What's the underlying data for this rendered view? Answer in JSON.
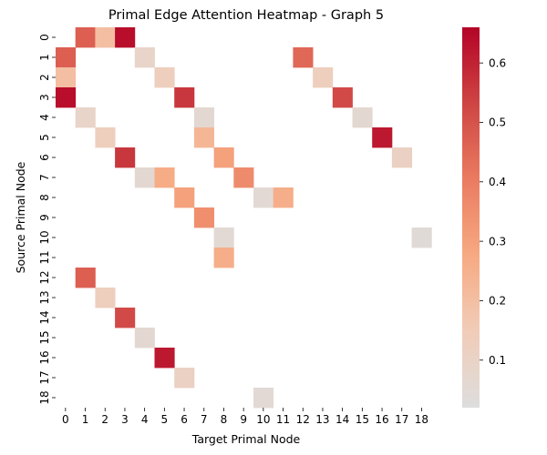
{
  "chart_data": {
    "type": "heatmap",
    "title": "Primal Edge Attention Heatmap - Graph 5",
    "xlabel": "Target Primal Node",
    "ylabel": "Source Primal Node",
    "x_categories": [
      "0",
      "1",
      "2",
      "3",
      "4",
      "5",
      "6",
      "7",
      "8",
      "9",
      "10",
      "11",
      "12",
      "13",
      "14",
      "15",
      "16",
      "17",
      "18"
    ],
    "y_categories": [
      "0",
      "1",
      "2",
      "3",
      "4",
      "5",
      "6",
      "7",
      "8",
      "9",
      "10",
      "11",
      "12",
      "13",
      "14",
      "15",
      "16",
      "17",
      "18"
    ],
    "cells": [
      {
        "row": 0,
        "col": 1,
        "value": 0.47
      },
      {
        "row": 0,
        "col": 2,
        "value": 0.2
      },
      {
        "row": 0,
        "col": 3,
        "value": 0.64
      },
      {
        "row": 1,
        "col": 0,
        "value": 0.47
      },
      {
        "row": 1,
        "col": 4,
        "value": 0.09
      },
      {
        "row": 1,
        "col": 12,
        "value": 0.45
      },
      {
        "row": 2,
        "col": 0,
        "value": 0.2
      },
      {
        "row": 2,
        "col": 5,
        "value": 0.13
      },
      {
        "row": 2,
        "col": 13,
        "value": 0.13
      },
      {
        "row": 3,
        "col": 0,
        "value": 0.64
      },
      {
        "row": 3,
        "col": 6,
        "value": 0.56
      },
      {
        "row": 3,
        "col": 14,
        "value": 0.52
      },
      {
        "row": 4,
        "col": 1,
        "value": 0.09
      },
      {
        "row": 4,
        "col": 7,
        "value": 0.06
      },
      {
        "row": 4,
        "col": 15,
        "value": 0.06
      },
      {
        "row": 5,
        "col": 2,
        "value": 0.13
      },
      {
        "row": 5,
        "col": 7,
        "value": 0.23
      },
      {
        "row": 5,
        "col": 16,
        "value": 0.62
      },
      {
        "row": 6,
        "col": 3,
        "value": 0.56
      },
      {
        "row": 6,
        "col": 8,
        "value": 0.3
      },
      {
        "row": 6,
        "col": 17,
        "value": 0.11
      },
      {
        "row": 7,
        "col": 4,
        "value": 0.06
      },
      {
        "row": 7,
        "col": 5,
        "value": 0.27
      },
      {
        "row": 7,
        "col": 9,
        "value": 0.36
      },
      {
        "row": 8,
        "col": 6,
        "value": 0.3
      },
      {
        "row": 8,
        "col": 10,
        "value": 0.05
      },
      {
        "row": 8,
        "col": 11,
        "value": 0.26
      },
      {
        "row": 9,
        "col": 7,
        "value": 0.35
      },
      {
        "row": 10,
        "col": 8,
        "value": 0.05
      },
      {
        "row": 10,
        "col": 18,
        "value": 0.04
      },
      {
        "row": 11,
        "col": 8,
        "value": 0.26
      },
      {
        "row": 12,
        "col": 1,
        "value": 0.47
      },
      {
        "row": 13,
        "col": 2,
        "value": 0.13
      },
      {
        "row": 14,
        "col": 3,
        "value": 0.52
      },
      {
        "row": 15,
        "col": 4,
        "value": 0.06
      },
      {
        "row": 16,
        "col": 5,
        "value": 0.62
      },
      {
        "row": 17,
        "col": 6,
        "value": 0.11
      },
      {
        "row": 18,
        "col": 10,
        "value": 0.05
      }
    ],
    "colorbar": {
      "colormap": "coolwarm",
      "vmin": 0.02,
      "vmax": 0.66,
      "ticks": [
        0.1,
        0.2,
        0.3,
        0.4,
        0.5,
        0.6
      ],
      "tick_labels": [
        "0.1",
        "0.2",
        "0.3",
        "0.4",
        "0.5",
        "0.6"
      ]
    },
    "grid": false,
    "legend": "colorbar right"
  }
}
